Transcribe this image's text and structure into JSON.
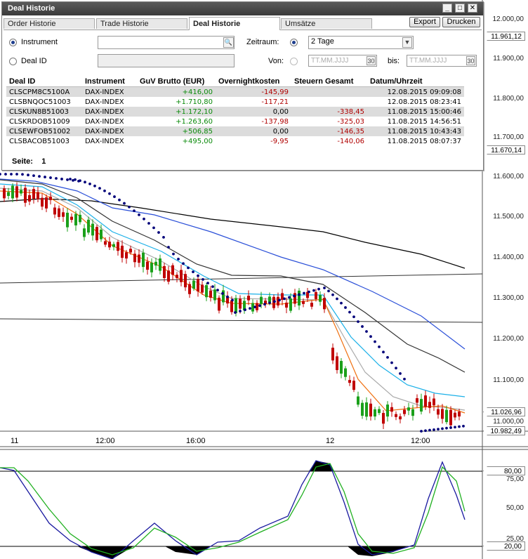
{
  "dialog": {
    "title": "Deal Historie",
    "tabs": [
      "Order Historie",
      "Trade Historie",
      "Deal Historie",
      "Umsätze"
    ],
    "active_tab": 2,
    "export_label": "Export",
    "print_label": "Drucken",
    "instrument_label": "Instrument",
    "deal_id_label": "Deal ID",
    "zeitraum_label": "Zeitraum:",
    "zeitraum_value": "2 Tage",
    "von_label": "Von:",
    "bis_label": "bis:",
    "date_placeholder": "TT.MM.JJJJ",
    "calendar_label": "30",
    "columns": [
      "Deal ID",
      "Instrument",
      "GuV Brutto (EUR)",
      "Overnightkosten",
      "Steuern Gesamt",
      "Datum/Uhrzeit"
    ],
    "rows": [
      [
        "CLSCPM8C5100A",
        "DAX-INDEX",
        "+416,00",
        "-145,99",
        "",
        "12.08.2015 09:09:08"
      ],
      [
        "CLSBNQOC51003",
        "DAX-INDEX",
        "+1.710,80",
        "-117,21",
        "",
        "12.08.2015 08:23:41"
      ],
      [
        "CLSKUN8B51003",
        "DAX-INDEX",
        "+1.172,10",
        "0,00",
        "-338,45",
        "11.08.2015 15:00:46"
      ],
      [
        "CLSKRDOB51009",
        "DAX-INDEX",
        "+1.263,60",
        "-137,98",
        "-325,03",
        "11.08.2015 14:56:51"
      ],
      [
        "CLSEWFOB51002",
        "DAX-INDEX",
        "+506,85",
        "0,00",
        "-146,35",
        "11.08.2015 10:43:43"
      ],
      [
        "CLSBACOB51003",
        "DAX-INDEX",
        "+495,00",
        "-9,95",
        "-140,06",
        "11.08.2015 08:07:37"
      ]
    ],
    "page_label": "Seite:",
    "page_number": "1"
  },
  "chart": {
    "y_labels": [
      "12.000,00",
      "11.900,00",
      "11.800,00",
      "11.700,00",
      "11.600,00",
      "11.500,00",
      "11.400,00",
      "11.300,00",
      "11.200,00",
      "11.100,00",
      "11.000,00"
    ],
    "price_tags": [
      "11.961,12",
      "11.670,14",
      "11.026,96",
      "10.982,49"
    ],
    "x_labels": [
      "11",
      "12:00",
      "16:00",
      "12",
      "12:00"
    ],
    "osc_labels": [
      "80,00",
      "75,00",
      "50,00",
      "25,00",
      "20,00"
    ],
    "colors": {
      "up": "#1aa01a",
      "down": "#c00000",
      "psar": "#00007a"
    }
  }
}
